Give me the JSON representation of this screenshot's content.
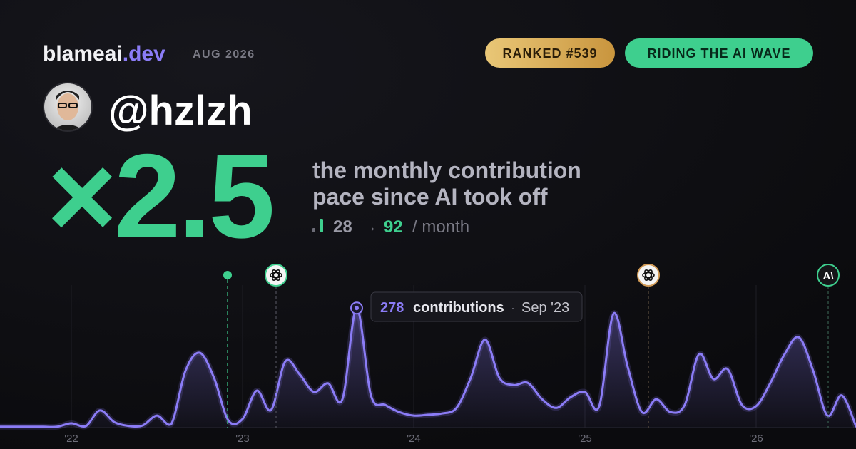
{
  "header": {
    "brand": "blameai",
    "brand_suffix": ".dev",
    "period": "AUG 2026",
    "badges": [
      "RANKED #539",
      "RIDING THE AI WAVE"
    ],
    "handle": "@hzlzh"
  },
  "hero": {
    "multiplier": "×2.5",
    "description": [
      "the monthly contribution",
      "pace since AI took off"
    ],
    "before": "28",
    "arrow": "→",
    "after": "92",
    "unit": "/ month"
  },
  "tooltip": {
    "label": "contributions",
    "separator": "·",
    "date": "Sep '23"
  },
  "icon_text": "A\\",
  "chart_data": {
    "type": "area",
    "categories": [
      null,
      null,
      null,
      null,
      null,
      "'22",
      null,
      null,
      null,
      null,
      null,
      null,
      null,
      null,
      null,
      null,
      null,
      "'23",
      null,
      null,
      null,
      null,
      null,
      null,
      null,
      null,
      null,
      null,
      null,
      "'24",
      null,
      null,
      null,
      null,
      null,
      null,
      null,
      null,
      null,
      null,
      null,
      "'25",
      null,
      null,
      null,
      null,
      null,
      null,
      null,
      null,
      null,
      null,
      null,
      "'26",
      null,
      null,
      null,
      null,
      null,
      null,
      null
    ],
    "values": [
      2,
      2,
      2,
      2,
      2,
      10,
      3,
      40,
      13,
      4,
      5,
      28,
      8,
      132,
      174,
      116,
      17,
      20,
      86,
      41,
      154,
      124,
      83,
      103,
      66,
      278,
      75,
      53,
      36,
      28,
      30,
      33,
      46,
      116,
      205,
      116,
      99,
      104,
      66,
      46,
      71,
      83,
      50,
      265,
      141,
      36,
      66,
      36,
      53,
      171,
      113,
      136,
      53,
      50,
      104,
      171,
      210,
      132,
      28,
      75,
      3
    ],
    "color": "#8b7cf6",
    "ylim": [
      0,
      300
    ]
  }
}
